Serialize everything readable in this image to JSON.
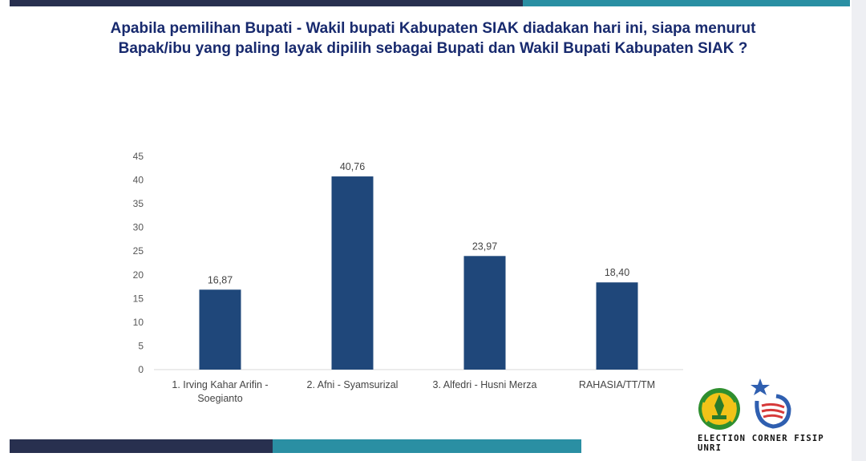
{
  "title_line1": "Apabila pemilihan Bupati - Wakil bupati Kabupaten SIAK diadakan hari ini, siapa menurut",
  "title_line2": "Bapak/ibu yang paling layak dipilih sebagai Bupati dan Wakil Bupati Kabupaten SIAK ?",
  "footer_text": "ELECTION CORNER FISIP UNRI",
  "colors": {
    "bar": "#1f477a",
    "title": "#182a6e",
    "dark_band": "#28304f",
    "teal_band": "#2a8fa3"
  },
  "chart_data": {
    "type": "bar",
    "categories": [
      [
        "1. Irving Kahar Arifin -",
        "Soegianto"
      ],
      [
        "2. Afni - Syamsurizal"
      ],
      [
        "3. Alfedri - Husni Merza"
      ],
      [
        "RAHASIA/TT/TM"
      ]
    ],
    "values": [
      16.87,
      40.76,
      23.97,
      18.4
    ],
    "value_labels": [
      "16,87",
      "40,76",
      "23,97",
      "18,40"
    ],
    "ylim": [
      0,
      45
    ],
    "yticks": [
      0,
      5,
      10,
      15,
      20,
      25,
      30,
      35,
      40,
      45
    ],
    "grid": false,
    "legend": "none"
  }
}
